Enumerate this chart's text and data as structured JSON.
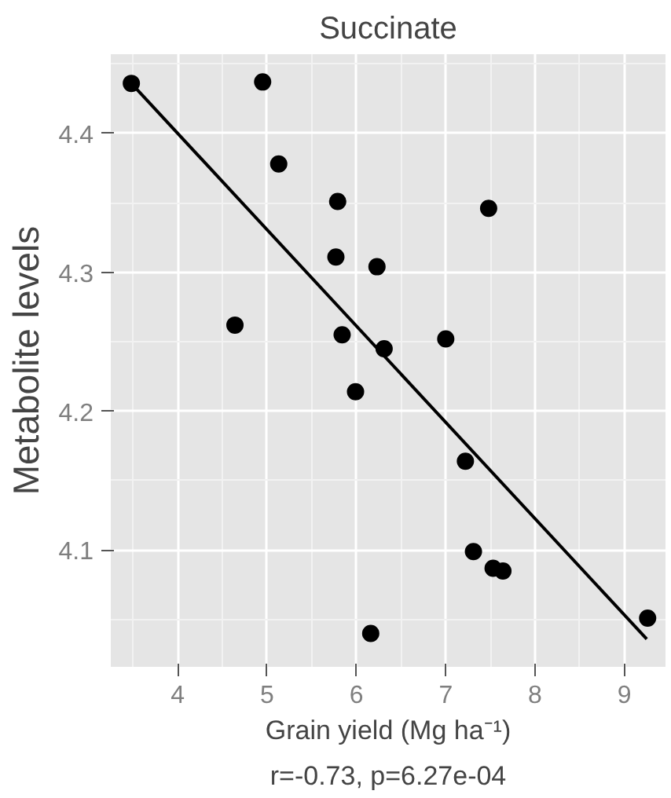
{
  "chart_data": {
    "type": "scatter",
    "title": "Succinate",
    "xlabel": "Grain yield (Mg ha⁻¹)",
    "ylabel": "Metabolite levels",
    "annotations": [
      "r=-0.73, p=6.27e-04"
    ],
    "xlim": [
      3.25,
      9.46
    ],
    "ylim": [
      4.016,
      4.457
    ],
    "xticks": [
      4,
      5,
      6,
      7,
      8,
      9
    ],
    "yticks": [
      4.1,
      4.2,
      4.3,
      4.4
    ],
    "grid": true,
    "marker": "circle",
    "series": [
      {
        "color": "#000000",
        "x": [
          3.48,
          4.95,
          5.13,
          5.79,
          7.48,
          5.77,
          6.23,
          4.64,
          5.84,
          6.31,
          7.0,
          5.99,
          7.22,
          7.31,
          7.53,
          7.64,
          6.16,
          9.26
        ],
        "values": [
          4.436,
          4.437,
          4.378,
          4.351,
          4.346,
          4.311,
          4.304,
          4.262,
          4.255,
          4.245,
          4.252,
          4.214,
          4.164,
          4.099,
          4.087,
          4.085,
          4.04,
          4.051
        ]
      },
      {
        "type": "line",
        "marker": "none",
        "color": "#000000",
        "x": [
          3.48,
          9.25
        ],
        "values": [
          4.436,
          4.036
        ]
      }
    ]
  }
}
